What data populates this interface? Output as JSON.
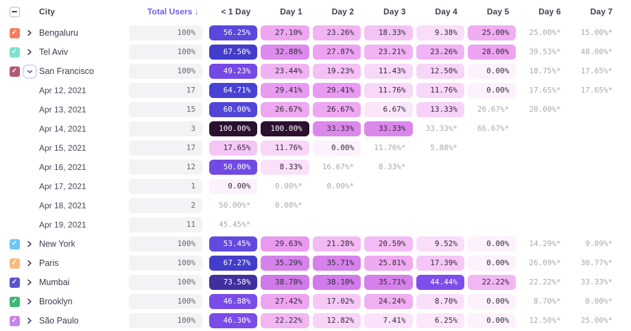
{
  "colors": {
    "accent": "#6a5be8",
    "header_text": "#3f3f52",
    "cell_dark_text": "#312839",
    "cell_light_text": "#ffffff",
    "incomplete_text": "#a8a8b2",
    "total_pill_bg": "#f3f3f5",
    "expand_ring": "#ddd7fa",
    "checkbox_border": "#b6bac6",
    "white_text_threshold": 40,
    "scale": [
      [
        0,
        "#fdf1fd"
      ],
      [
        5,
        "#fbe9fb"
      ],
      [
        8,
        "#fae1fa"
      ],
      [
        10,
        "#f9dcf9"
      ],
      [
        13,
        "#f7d3f8"
      ],
      [
        16,
        "#f5cbf6"
      ],
      [
        19,
        "#f4c1f5"
      ],
      [
        22,
        "#f2b7f3"
      ],
      [
        25,
        "#f0adf2"
      ],
      [
        28,
        "#eda3f1"
      ],
      [
        31,
        "#e392ee"
      ],
      [
        34,
        "#d985ec"
      ],
      [
        37,
        "#d37dea"
      ],
      [
        39.9,
        "#cf76e9"
      ],
      [
        40,
        "#8a57f2"
      ],
      [
        45,
        "#7c4cea"
      ],
      [
        50,
        "#7349e4"
      ],
      [
        54,
        "#6049dd"
      ],
      [
        58,
        "#5546d9"
      ],
      [
        62,
        "#4d45d6"
      ],
      [
        66,
        "#4440d1"
      ],
      [
        70,
        "#4136bd"
      ],
      [
        74,
        "#3f2e9c"
      ],
      [
        82,
        "#362255"
      ],
      [
        92,
        "#2f1638"
      ],
      [
        100,
        "#2b1030"
      ]
    ]
  },
  "header": {
    "city": "City",
    "total_users": "Total Users ↓",
    "days": [
      "< 1 Day",
      "Day 1",
      "Day 2",
      "Day 3",
      "Day 4",
      "Day 5",
      "Day 6",
      "Day 7"
    ]
  },
  "rows": [
    {
      "type": "city",
      "label": "Bengaluru",
      "checkbox": "#f87c60",
      "expanded": false,
      "total": "100%",
      "cells": [
        {
          "t": "56.25%",
          "v": 56.25
        },
        {
          "t": "27.10%",
          "v": 27.1
        },
        {
          "t": "23.26%",
          "v": 23.26
        },
        {
          "t": "18.33%",
          "v": 18.33
        },
        {
          "t": "9.38%",
          "v": 9.38
        },
        {
          "t": "25.00%",
          "v": 25.0
        },
        {
          "t": "25.00%*"
        },
        {
          "t": "15.00%*"
        }
      ]
    },
    {
      "type": "city",
      "label": "Tel Aviv",
      "checkbox": "#7edfd0",
      "expanded": false,
      "total": "100%",
      "cells": [
        {
          "t": "67.50%",
          "v": 67.5
        },
        {
          "t": "32.88%",
          "v": 32.88
        },
        {
          "t": "27.87%",
          "v": 27.87
        },
        {
          "t": "23.21%",
          "v": 23.21
        },
        {
          "t": "23.26%",
          "v": 23.26
        },
        {
          "t": "28.00%",
          "v": 28.0
        },
        {
          "t": "39.53%*"
        },
        {
          "t": "48.00%*"
        }
      ]
    },
    {
      "type": "city",
      "label": "San Francisco",
      "checkbox": "#b25a6e",
      "expanded": true,
      "total": "100%",
      "cells": [
        {
          "t": "49.23%",
          "v": 49.23
        },
        {
          "t": "23.44%",
          "v": 23.44
        },
        {
          "t": "19.23%",
          "v": 19.23
        },
        {
          "t": "11.43%",
          "v": 11.43
        },
        {
          "t": "12.50%",
          "v": 12.5
        },
        {
          "t": "0.00%",
          "v": 0
        },
        {
          "t": "18.75%*"
        },
        {
          "t": "17.65%*"
        }
      ]
    },
    {
      "type": "date",
      "label": "Apr 12, 2021",
      "total": "17",
      "cells": [
        {
          "t": "64.71%",
          "v": 64.71
        },
        {
          "t": "29.41%",
          "v": 29.41
        },
        {
          "t": "29.41%",
          "v": 29.41
        },
        {
          "t": "11.76%",
          "v": 11.76
        },
        {
          "t": "11.76%",
          "v": 11.76
        },
        {
          "t": "0.00%",
          "v": 0
        },
        {
          "t": "17.65%*"
        },
        {
          "t": "17.65%*"
        }
      ]
    },
    {
      "type": "date",
      "label": "Apr 13, 2021",
      "total": "15",
      "cells": [
        {
          "t": "60.00%",
          "v": 60.0
        },
        {
          "t": "26.67%",
          "v": 26.67
        },
        {
          "t": "26.67%",
          "v": 26.67
        },
        {
          "t": "6.67%",
          "v": 6.67
        },
        {
          "t": "13.33%",
          "v": 13.33
        },
        {
          "t": "26.67%*"
        },
        {
          "t": "20.00%*"
        },
        null
      ]
    },
    {
      "type": "date",
      "label": "Apr 14, 2021",
      "total": "3",
      "cells": [
        {
          "t": "100.00%",
          "v": 100
        },
        {
          "t": "100.00%",
          "v": 100
        },
        {
          "t": "33.33%",
          "v": 33.33
        },
        {
          "t": "33.33%",
          "v": 33.33
        },
        {
          "t": "33.33%*"
        },
        {
          "t": "66.67%*"
        },
        null,
        null
      ]
    },
    {
      "type": "date",
      "label": "Apr 15, 2021",
      "total": "17",
      "cells": [
        {
          "t": "17.65%",
          "v": 17.65
        },
        {
          "t": "11.76%",
          "v": 11.76
        },
        {
          "t": "0.00%",
          "v": 0
        },
        {
          "t": "11.76%*"
        },
        {
          "t": "5.88%*"
        },
        null,
        null,
        null
      ]
    },
    {
      "type": "date",
      "label": "Apr 16, 2021",
      "total": "12",
      "cells": [
        {
          "t": "50.00%",
          "v": 50.0
        },
        {
          "t": "8.33%",
          "v": 8.33
        },
        {
          "t": "16.67%*"
        },
        {
          "t": "8.33%*"
        },
        null,
        null,
        null,
        null
      ]
    },
    {
      "type": "date",
      "label": "Apr 17, 2021",
      "total": "1",
      "cells": [
        {
          "t": "0.00%",
          "v": 0
        },
        {
          "t": "0.00%*"
        },
        {
          "t": "0.00%*"
        },
        null,
        null,
        null,
        null,
        null
      ]
    },
    {
      "type": "date",
      "label": "Apr 18, 2021",
      "total": "2",
      "cells": [
        {
          "t": "50.00%*"
        },
        {
          "t": "0.00%*"
        },
        null,
        null,
        null,
        null,
        null,
        null
      ]
    },
    {
      "type": "date",
      "label": "Apr 19, 2021",
      "total": "11",
      "cells": [
        {
          "t": "45.45%*"
        },
        null,
        null,
        null,
        null,
        null,
        null,
        null
      ]
    },
    {
      "type": "city",
      "label": "New York",
      "checkbox": "#70c4f1",
      "expanded": false,
      "total": "100%",
      "cells": [
        {
          "t": "53.45%",
          "v": 53.45
        },
        {
          "t": "29.63%",
          "v": 29.63
        },
        {
          "t": "21.28%",
          "v": 21.28
        },
        {
          "t": "20.59%",
          "v": 20.59
        },
        {
          "t": "9.52%",
          "v": 9.52
        },
        {
          "t": "0.00%",
          "v": 0
        },
        {
          "t": "14.29%*"
        },
        {
          "t": "9.09%*"
        }
      ]
    },
    {
      "type": "city",
      "label": "Paris",
      "checkbox": "#f8ba80",
      "expanded": false,
      "total": "100%",
      "cells": [
        {
          "t": "67.27%",
          "v": 67.27
        },
        {
          "t": "35.29%",
          "v": 35.29
        },
        {
          "t": "35.71%",
          "v": 35.71
        },
        {
          "t": "25.81%",
          "v": 25.81
        },
        {
          "t": "17.39%",
          "v": 17.39
        },
        {
          "t": "0.00%",
          "v": 0
        },
        {
          "t": "26.09%*"
        },
        {
          "t": "30.77%*"
        }
      ]
    },
    {
      "type": "city",
      "label": "Mumbai",
      "checkbox": "#5a52c8",
      "expanded": false,
      "total": "100%",
      "cells": [
        {
          "t": "73.58%",
          "v": 73.58
        },
        {
          "t": "38.78%",
          "v": 38.78
        },
        {
          "t": "38.10%",
          "v": 38.1
        },
        {
          "t": "35.71%",
          "v": 35.71
        },
        {
          "t": "44.44%",
          "v": 44.44
        },
        {
          "t": "22.22%",
          "v": 22.22
        },
        {
          "t": "22.22%*"
        },
        {
          "t": "33.33%*"
        }
      ]
    },
    {
      "type": "city",
      "label": "Brooklyn",
      "checkbox": "#3db876",
      "expanded": false,
      "total": "100%",
      "cells": [
        {
          "t": "46.88%",
          "v": 46.88
        },
        {
          "t": "27.42%",
          "v": 27.42
        },
        {
          "t": "17.02%",
          "v": 17.02
        },
        {
          "t": "24.24%",
          "v": 24.24
        },
        {
          "t": "8.70%",
          "v": 8.7
        },
        {
          "t": "0.00%",
          "v": 0
        },
        {
          "t": "8.70%*"
        },
        {
          "t": "0.00%*"
        }
      ]
    },
    {
      "type": "city",
      "label": "São Paulo",
      "checkbox": "#c584ec",
      "expanded": false,
      "total": "100%",
      "cells": [
        {
          "t": "46.30%",
          "v": 46.3
        },
        {
          "t": "22.22%",
          "v": 22.22
        },
        {
          "t": "12.82%",
          "v": 12.82
        },
        {
          "t": "7.41%",
          "v": 7.41
        },
        {
          "t": "6.25%",
          "v": 6.25
        },
        {
          "t": "0.00%",
          "v": 0
        },
        {
          "t": "12.50%*"
        },
        {
          "t": "25.00%*"
        }
      ]
    }
  ]
}
